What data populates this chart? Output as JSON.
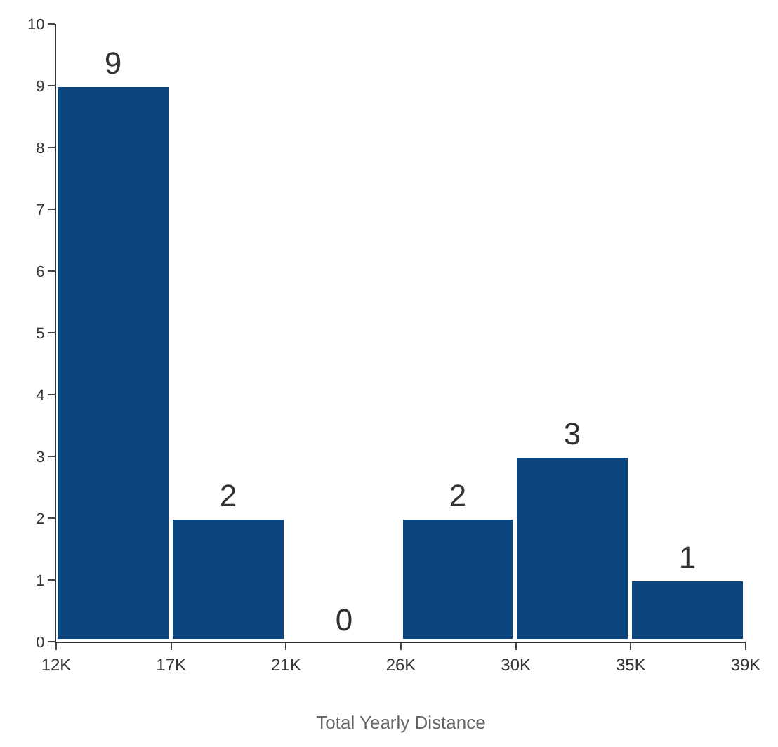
{
  "chart_data": {
    "type": "histogram",
    "xlabel": "Total Yearly Distance",
    "bins": [
      12000,
      16500,
      21000,
      25500,
      30000,
      34500,
      39000
    ],
    "values": [
      9,
      2,
      0,
      2,
      3,
      1
    ],
    "color": "#0b4680",
    "xlim": [
      12000,
      39000
    ],
    "xticks": [
      {
        "value": 12000,
        "label": "12K"
      },
      {
        "value": 16500,
        "label": "17K"
      },
      {
        "value": 21000,
        "label": "21K"
      },
      {
        "value": 25500,
        "label": "26K"
      },
      {
        "value": 30000,
        "label": "30K"
      },
      {
        "value": 34500,
        "label": "35K"
      },
      {
        "value": 39000,
        "label": "39K"
      }
    ],
    "ylim": [
      0,
      10
    ],
    "yticks": [
      0,
      1,
      2,
      3,
      4,
      5,
      6,
      7,
      8,
      9,
      10
    ],
    "data_labels": true
  }
}
